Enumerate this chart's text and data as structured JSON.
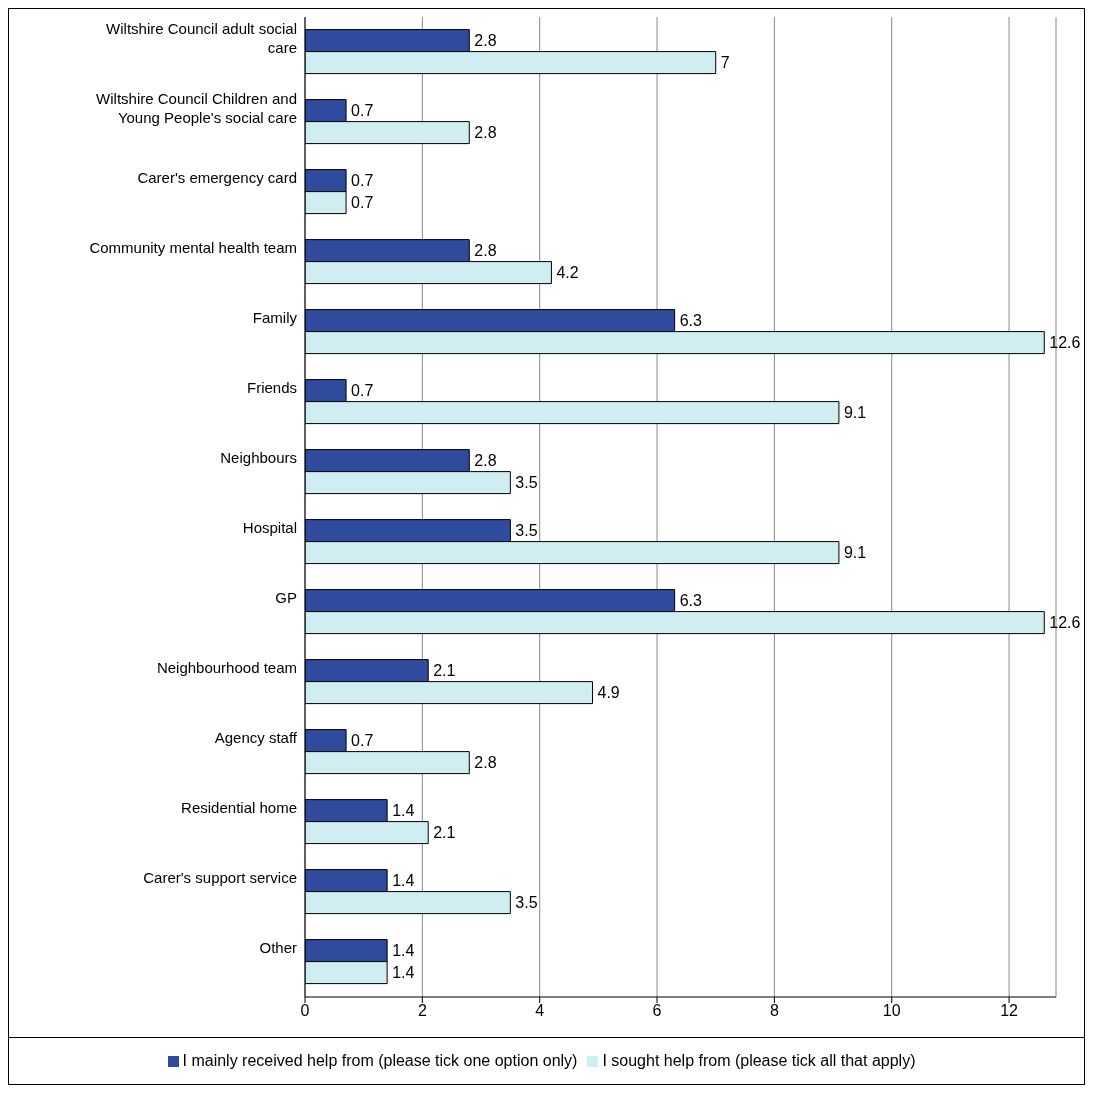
{
  "chart_data": {
    "type": "bar",
    "orientation": "horizontal",
    "categories": [
      "Wiltshire Council adult social care",
      "Wiltshire Council Children and Young People's social care",
      "Carer's emergency card",
      "Community mental health team",
      "Family",
      "Friends",
      "Neighbours",
      "Hospital",
      "GP",
      "Neighbourhood team",
      "Agency staff",
      "Residential home",
      "Carer's support service",
      "Other"
    ],
    "series": [
      {
        "name": "I mainly received help from (please tick one option only)",
        "color": "#2e4b9e",
        "values": [
          2.8,
          0.7,
          0.7,
          2.8,
          6.3,
          0.7,
          2.8,
          3.5,
          6.3,
          2.1,
          0.7,
          1.4,
          1.4,
          1.4
        ]
      },
      {
        "name": "I sought help from (please tick all that apply)",
        "color": "#d0eef2",
        "values": [
          7,
          2.8,
          0.7,
          4.2,
          12.6,
          9.1,
          3.5,
          9.1,
          12.6,
          4.9,
          2.8,
          2.1,
          3.5,
          1.4
        ]
      }
    ],
    "xlim": [
      0,
      12.8
    ],
    "xticks": [
      0,
      2,
      4,
      6,
      8,
      10,
      12
    ],
    "grid": "x",
    "legend": "bottom",
    "data_labels": true
  }
}
